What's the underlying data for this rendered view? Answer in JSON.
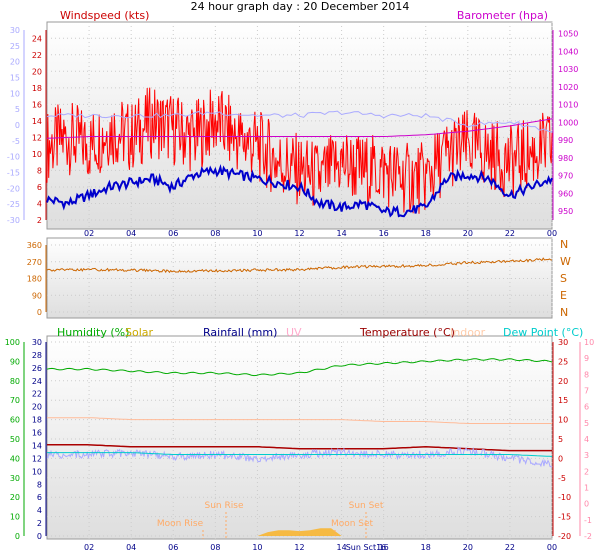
{
  "chart_data": [
    {
      "type": "line",
      "title": "24 hour graph day : 20 December 2014",
      "left_label": "Windspeed (kts)",
      "right_label": "Barometer (hpa)",
      "x_ticks": [
        "02",
        "04",
        "06",
        "08",
        "10",
        "12",
        "14",
        "16",
        "18",
        "20",
        "22",
        "00"
      ],
      "y_left_ticks": [
        2,
        4,
        6,
        8,
        10,
        12,
        14,
        16,
        18,
        20,
        22,
        24
      ],
      "y_right_ticks": [
        950,
        960,
        970,
        980,
        990,
        1000,
        1010,
        1020,
        1030,
        1040,
        1050
      ],
      "y_outer_ticks": [
        -30,
        -25,
        -20,
        -15,
        -10,
        -5,
        0,
        5,
        10,
        15,
        20,
        25,
        30
      ],
      "ylim_left": [
        2,
        25
      ],
      "ylim_right": [
        945,
        1052
      ],
      "grid": true,
      "series": [
        {
          "role": "gust",
          "color": "#ff0000",
          "x": [
            0,
            1,
            2,
            3,
            4,
            5,
            6,
            7,
            8,
            9,
            10,
            11,
            12,
            13,
            14,
            15,
            16,
            17,
            18,
            19,
            20,
            21,
            22,
            23,
            24
          ],
          "values": [
            11,
            12,
            11,
            13,
            12,
            14,
            13,
            12,
            14,
            12,
            11,
            9,
            8,
            7,
            9,
            8,
            8,
            7,
            7,
            10,
            11,
            10,
            9,
            10,
            11
          ]
        },
        {
          "role": "average",
          "color": "#0000cc",
          "x": [
            0,
            1,
            2,
            3,
            4,
            5,
            6,
            7,
            8,
            9,
            10,
            11,
            12,
            13,
            14,
            15,
            16,
            17,
            18,
            19,
            20,
            21,
            22,
            23,
            24
          ],
          "values": [
            4.5,
            4,
            5,
            6,
            6.5,
            7,
            6,
            7.5,
            8,
            7.5,
            7,
            6.5,
            6,
            4,
            3.5,
            4,
            3,
            3,
            3.5,
            7,
            7.5,
            7,
            5,
            6,
            7
          ]
        },
        {
          "role": "barometer",
          "color": "#cc00cc",
          "x": [
            0,
            2,
            4,
            6,
            8,
            10,
            12,
            14,
            16,
            18,
            20,
            22,
            24
          ],
          "values": [
            991,
            992,
            992,
            992,
            992,
            992,
            992,
            992,
            992,
            993,
            995,
            998,
            1002
          ]
        },
        {
          "role": "outer",
          "color": "#aaaaff",
          "x": [
            0,
            2,
            4,
            6,
            8,
            10,
            12,
            14,
            16,
            18,
            20,
            22,
            24
          ],
          "values": [
            3,
            3,
            3,
            3,
            4,
            3,
            3,
            4,
            3,
            3,
            0,
            1,
            -2
          ]
        }
      ]
    },
    {
      "type": "line",
      "title": "",
      "x_ticks": [
        "02",
        "04",
        "06",
        "08",
        "10",
        "12",
        "14",
        "16",
        "18",
        "20",
        "22",
        "00"
      ],
      "y_left_ticks": [
        0,
        90,
        180,
        270,
        360
      ],
      "y_right_ticks": [
        "N",
        "W",
        "S",
        "E",
        "N"
      ],
      "ylim": [
        0,
        360
      ],
      "grid": true,
      "series": [
        {
          "role": "direction",
          "color": "#cc6600",
          "x": [
            0,
            2,
            4,
            6,
            8,
            10,
            12,
            14,
            16,
            18,
            20,
            22,
            24
          ],
          "values": [
            225,
            228,
            225,
            220,
            222,
            225,
            228,
            240,
            245,
            250,
            265,
            272,
            285
          ]
        }
      ]
    },
    {
      "type": "line",
      "title": "",
      "legend": [
        {
          "name": "Humidity (%)",
          "color": "#00aa00"
        },
        {
          "name": "Solar",
          "color": "#ccaa00"
        },
        {
          "name": "Rainfall (mm)",
          "color": "#000088"
        },
        {
          "name": "UV",
          "color": "#ffaacc"
        },
        {
          "name": "Temperature (°C)",
          "color": "#990000"
        },
        {
          "name": "Indoor",
          "color": "#ffccaa"
        },
        {
          "name": "Dew Point (°C)",
          "color": "#00cccc"
        }
      ],
      "x_ticks": [
        "02",
        "04",
        "06",
        "08",
        "10",
        "12",
        "14",
        "16",
        "18",
        "20",
        "22",
        "00"
      ],
      "y_left_outer_ticks": [
        0,
        10,
        20,
        30,
        40,
        50,
        60,
        70,
        80,
        90,
        100
      ],
      "y_left_inner_ticks": [
        0,
        2,
        4,
        6,
        8,
        10,
        12,
        14,
        16,
        18,
        20,
        22,
        24,
        26,
        28,
        30
      ],
      "y_right_inner_ticks": [
        -20,
        -15,
        -10,
        -5,
        0,
        5,
        10,
        15,
        20,
        25,
        30
      ],
      "y_right_outer_ticks": [
        -2,
        -1,
        0,
        1,
        2,
        3,
        4,
        5,
        6,
        7,
        8,
        9,
        10
      ],
      "ylim": [
        0,
        100
      ],
      "grid": true,
      "annotations": [
        "Sun Rise",
        "Sun Set",
        "Moon Rise",
        "Moon Set",
        "Sun Sct16"
      ],
      "series": [
        {
          "role": "humidity",
          "color": "#00aa00",
          "x": [
            0,
            2,
            4,
            6,
            8,
            10,
            12,
            14,
            16,
            18,
            20,
            22,
            24
          ],
          "values": [
            86,
            86,
            85,
            84,
            84,
            83,
            84,
            88,
            89,
            90,
            91,
            91,
            90
          ]
        },
        {
          "role": "indoor",
          "color": "#ffbb99",
          "x": [
            0,
            2,
            4,
            6,
            8,
            10,
            12,
            14,
            16,
            18,
            20,
            22,
            24
          ],
          "values": [
            61,
            61,
            60,
            60,
            60,
            60,
            60,
            60,
            59,
            59,
            58,
            58,
            58
          ]
        },
        {
          "role": "temperature",
          "color": "#aa0000",
          "x": [
            0,
            2,
            4,
            6,
            8,
            10,
            12,
            14,
            16,
            18,
            20,
            22,
            24
          ],
          "values": [
            47,
            47,
            46,
            46,
            46,
            46,
            45,
            45,
            45,
            46,
            45,
            44,
            44
          ]
        },
        {
          "role": "outside",
          "color": "#aaaaff",
          "x": [
            0,
            2,
            4,
            6,
            8,
            10,
            12,
            14,
            16,
            18,
            20,
            22,
            24
          ],
          "values": [
            42,
            42,
            43,
            41,
            42,
            40,
            42,
            43,
            42,
            42,
            44,
            40,
            37
          ]
        },
        {
          "role": "dewpoint",
          "color": "#00cccc",
          "x": [
            0,
            2,
            4,
            6,
            8,
            10,
            12,
            14,
            16,
            18,
            20,
            22,
            24
          ],
          "values": [
            43,
            43,
            43,
            42,
            42,
            42,
            42,
            42,
            42,
            42,
            42,
            42,
            41
          ]
        },
        {
          "role": "solar",
          "color": "#ffaa00",
          "x": [
            10,
            10.5,
            11,
            11.5,
            12,
            12.5,
            13,
            13.5,
            14
          ],
          "values": [
            0,
            2,
            3,
            3,
            2.5,
            3,
            4,
            4,
            0
          ]
        }
      ]
    }
  ]
}
